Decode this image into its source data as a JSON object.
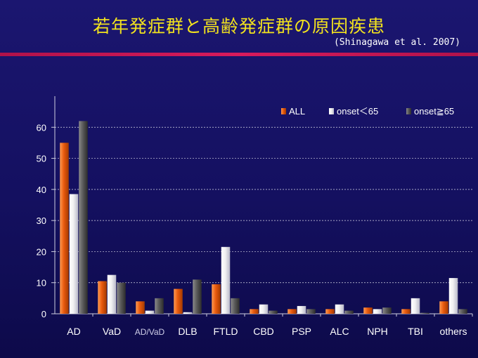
{
  "header": {
    "title": "若年発症群と高齢発症群の原因疾患",
    "source": "(Shinagawa et al. 2007)"
  },
  "colors": {
    "series": [
      "#e85a0e",
      "#f2f2f2",
      "#5a5a5a"
    ],
    "series_light": [
      "#ff9a50",
      "#ffffff",
      "#8a8a8a"
    ],
    "series_dark": [
      "#a33a00",
      "#b8b8c8",
      "#2c2c2c"
    ],
    "axis": "#cfcfe0",
    "grid": "#d8d8e8"
  },
  "chart_data": {
    "type": "bar",
    "categories": [
      "AD",
      "VaD",
      "AD/VaD",
      "DLB",
      "FTLD",
      "CBD",
      "PSP",
      "ALC",
      "NPH",
      "TBI",
      "others"
    ],
    "series": [
      {
        "name": "ALL",
        "values": [
          55,
          10.5,
          4,
          8,
          9.5,
          1.5,
          1.5,
          1.5,
          2,
          1.5,
          4
        ]
      },
      {
        "name": "onset＜65",
        "values": [
          38.5,
          12.5,
          1,
          0.5,
          21.5,
          3,
          2.5,
          3,
          1.5,
          5,
          11.5
        ]
      },
      {
        "name": "onset≧65",
        "values": [
          62,
          10,
          5,
          11,
          5,
          1,
          1.5,
          1,
          2,
          0.3,
          1.5
        ]
      }
    ],
    "yticks": [
      0,
      10,
      20,
      30,
      40,
      50,
      60
    ],
    "ylim": [
      0,
      70
    ],
    "grid": true,
    "legend_position": "top-right",
    "title": "",
    "xlabel": "",
    "ylabel": ""
  }
}
